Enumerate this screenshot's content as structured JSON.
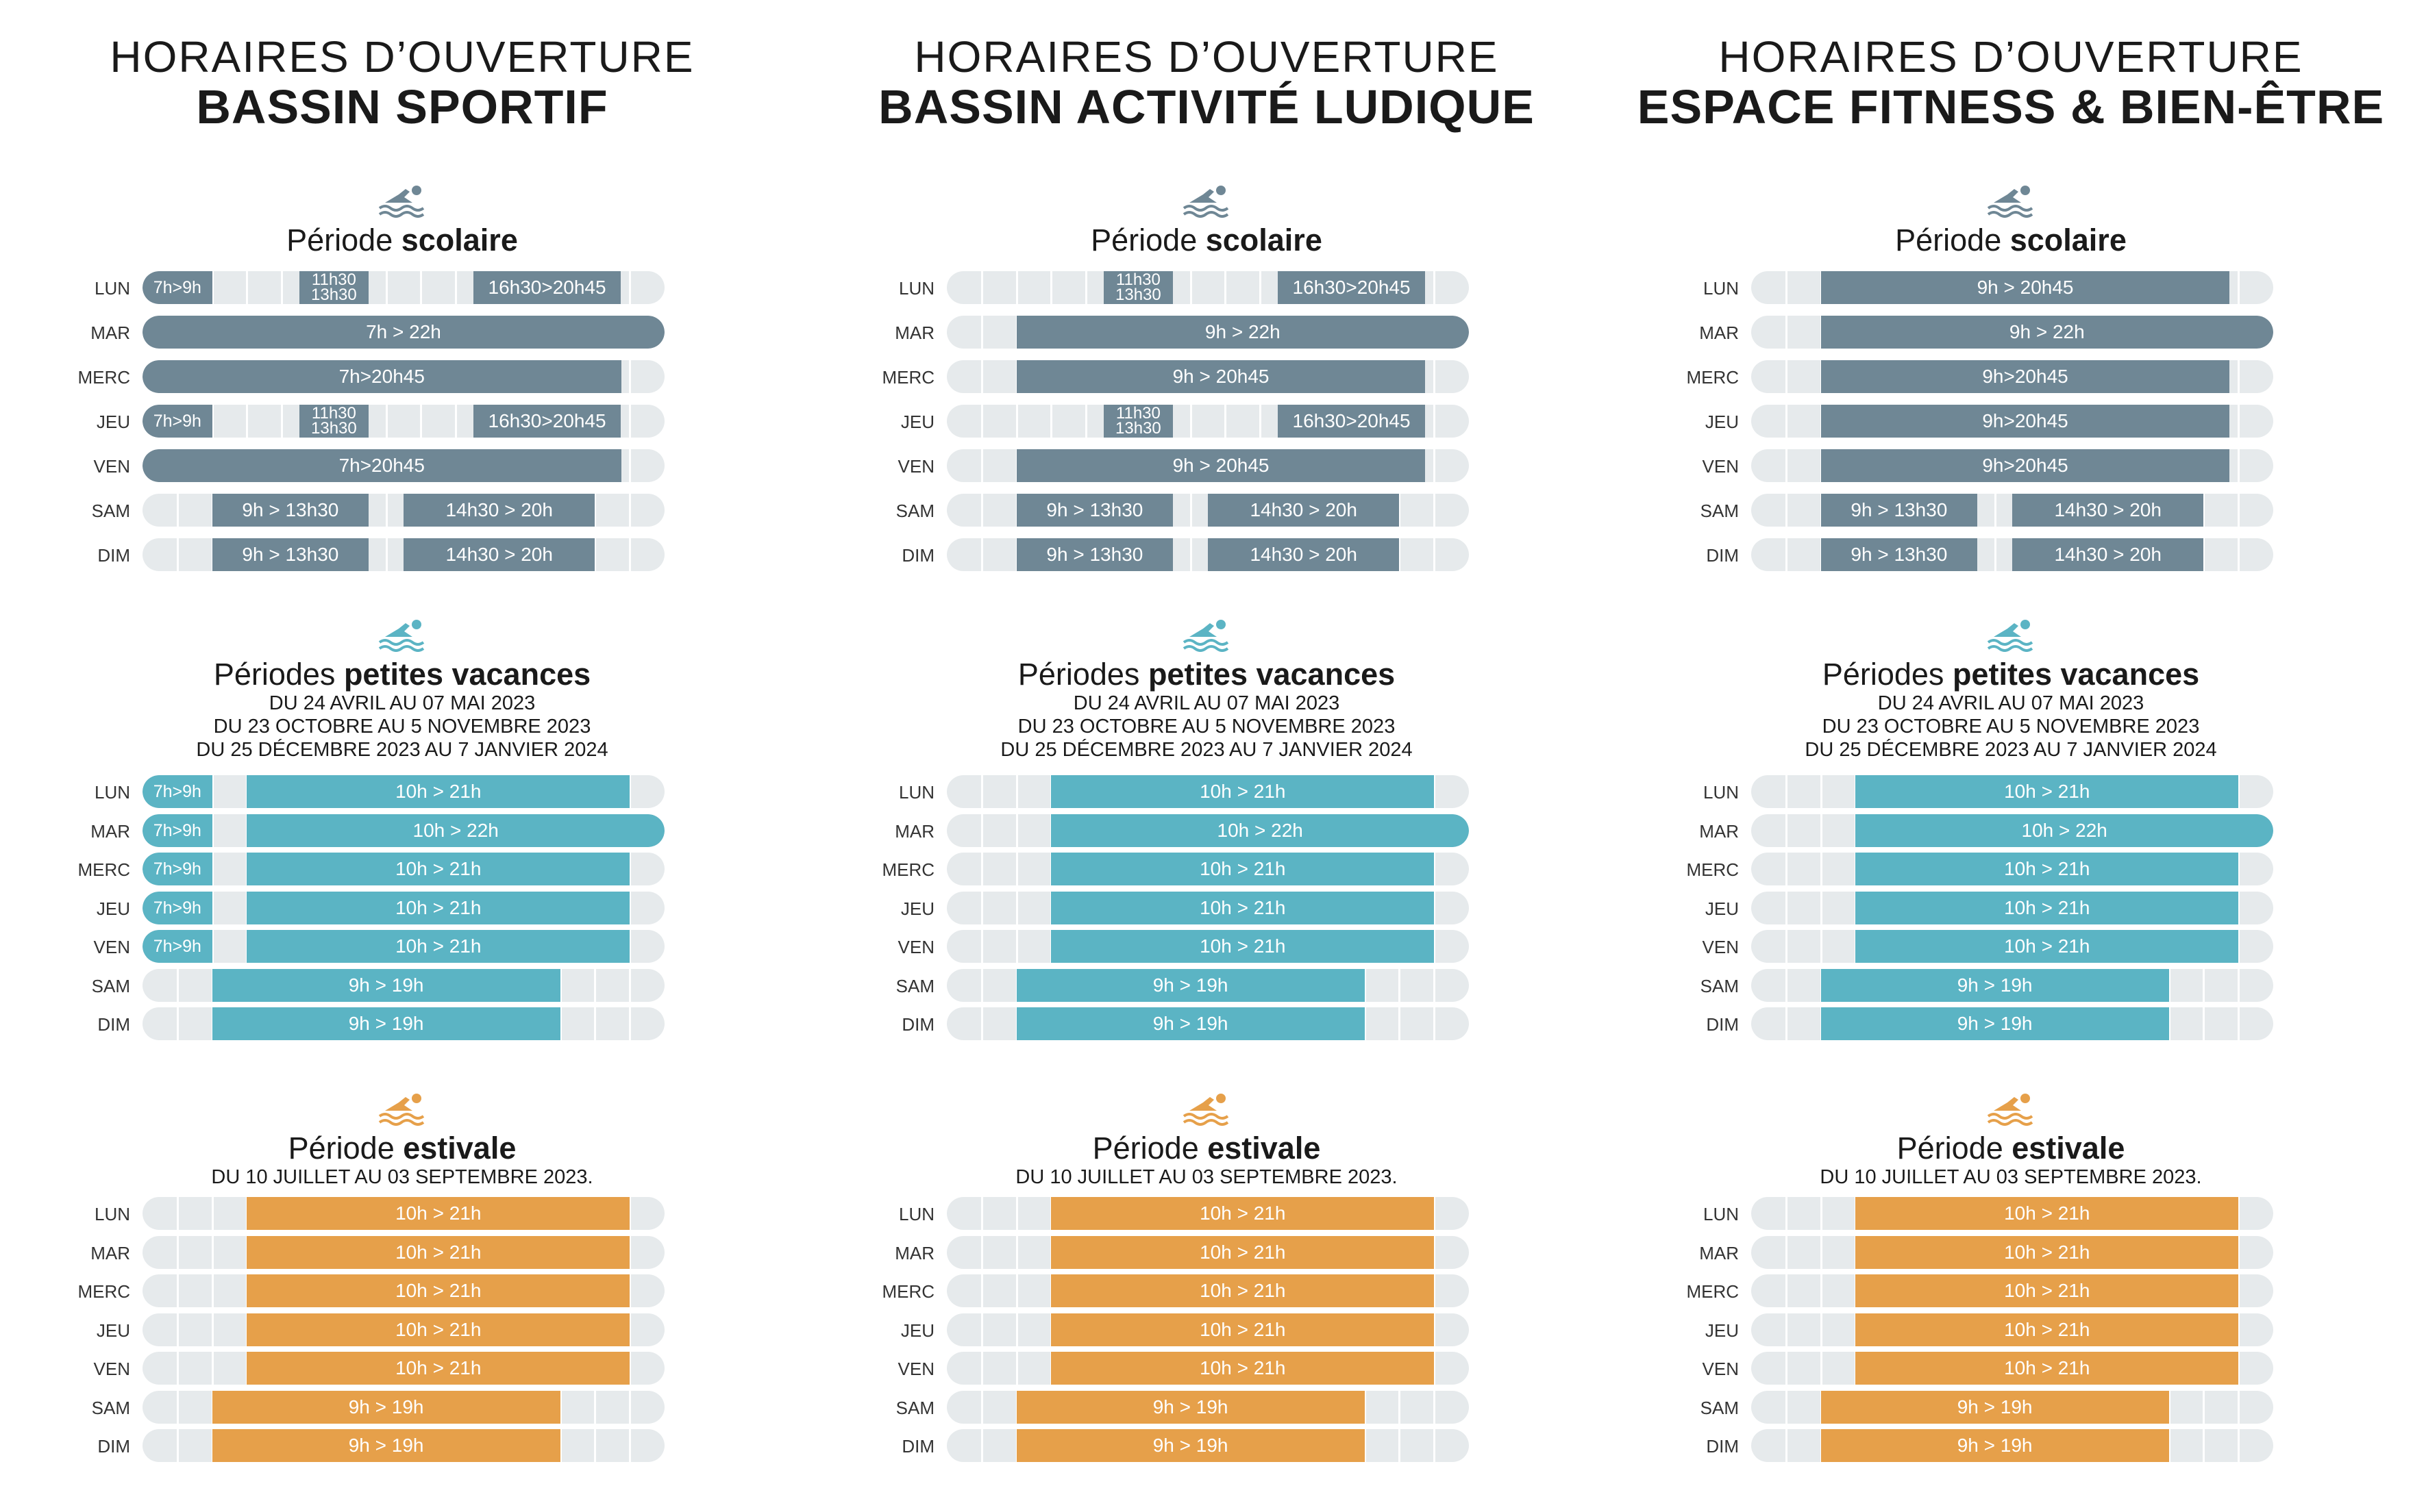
{
  "colors": {
    "scolaire": "#6f8795",
    "vacances": "#5bb4c4",
    "estivale": "#e6a04a",
    "track": "#e6eaec"
  },
  "section_labels": {
    "scolaire": {
      "pre": "Période ",
      "bold": "scolaire"
    },
    "vacances": {
      "pre": "Périodes ",
      "bold": "petites vacances"
    },
    "estivale": {
      "pre": "Période ",
      "bold": "estivale"
    }
  },
  "vacances_dates": [
    "DU 24 AVRIL AU 07 MAI 2023",
    "DU 23 OCTOBRE AU 5 NOVEMBRE 2023",
    "DU 25 DÉCEMBRE 2023 AU 7 JANVIER 2024"
  ],
  "estivale_dates": [
    "DU 10 JUILLET AU 03 SEPTEMBRE 2023."
  ],
  "columns": [
    {
      "title_line1": "HORAIRES D’OUVERTURE",
      "title_line2": "BASSIN SPORTIF",
      "scolaire": [
        {
          "day": "LUN",
          "slots": [
            {
              "s": 7,
              "e": 9,
              "label": "7h>9h"
            },
            {
              "s": 11.5,
              "e": 13.5,
              "label": "11h30\n13h30"
            },
            {
              "s": 16.5,
              "e": 20.75,
              "label": "16h30>20h45"
            }
          ]
        },
        {
          "day": "MAR",
          "slots": [
            {
              "s": 7,
              "e": 22,
              "label": "7h > 22h"
            }
          ]
        },
        {
          "day": "MERC",
          "slots": [
            {
              "s": 7,
              "e": 20.75,
              "label": "7h>20h45"
            }
          ]
        },
        {
          "day": "JEU",
          "slots": [
            {
              "s": 7,
              "e": 9,
              "label": "7h>9h"
            },
            {
              "s": 11.5,
              "e": 13.5,
              "label": "11h30\n13h30"
            },
            {
              "s": 16.5,
              "e": 20.75,
              "label": "16h30>20h45"
            }
          ]
        },
        {
          "day": "VEN",
          "slots": [
            {
              "s": 7,
              "e": 20.75,
              "label": "7h>20h45"
            }
          ]
        },
        {
          "day": "SAM",
          "slots": [
            {
              "s": 9,
              "e": 13.5,
              "label": "9h > 13h30"
            },
            {
              "s": 14.5,
              "e": 20,
              "label": "14h30 > 20h"
            }
          ]
        },
        {
          "day": "DIM",
          "slots": [
            {
              "s": 9,
              "e": 13.5,
              "label": "9h > 13h30"
            },
            {
              "s": 14.5,
              "e": 20,
              "label": "14h30 > 20h"
            }
          ]
        }
      ],
      "vacances": [
        {
          "day": "LUN",
          "slots": [
            {
              "s": 7,
              "e": 9,
              "label": "7h>9h"
            },
            {
              "s": 10,
              "e": 21,
              "label": "10h > 21h"
            }
          ]
        },
        {
          "day": "MAR",
          "slots": [
            {
              "s": 7,
              "e": 9,
              "label": "7h>9h"
            },
            {
              "s": 10,
              "e": 22,
              "label": "10h > 22h"
            }
          ]
        },
        {
          "day": "MERC",
          "slots": [
            {
              "s": 7,
              "e": 9,
              "label": "7h>9h"
            },
            {
              "s": 10,
              "e": 21,
              "label": "10h > 21h"
            }
          ]
        },
        {
          "day": "JEU",
          "slots": [
            {
              "s": 7,
              "e": 9,
              "label": "7h>9h"
            },
            {
              "s": 10,
              "e": 21,
              "label": "10h > 21h"
            }
          ]
        },
        {
          "day": "VEN",
          "slots": [
            {
              "s": 7,
              "e": 9,
              "label": "7h>9h"
            },
            {
              "s": 10,
              "e": 21,
              "label": "10h > 21h"
            }
          ]
        },
        {
          "day": "SAM",
          "slots": [
            {
              "s": 9,
              "e": 19,
              "label": "9h > 19h"
            }
          ]
        },
        {
          "day": "DIM",
          "slots": [
            {
              "s": 9,
              "e": 19,
              "label": "9h > 19h"
            }
          ]
        }
      ],
      "estivale": [
        {
          "day": "LUN",
          "slots": [
            {
              "s": 10,
              "e": 21,
              "label": "10h > 21h"
            }
          ]
        },
        {
          "day": "MAR",
          "slots": [
            {
              "s": 10,
              "e": 21,
              "label": "10h > 21h"
            }
          ]
        },
        {
          "day": "MERC",
          "slots": [
            {
              "s": 10,
              "e": 21,
              "label": "10h > 21h"
            }
          ]
        },
        {
          "day": "JEU",
          "slots": [
            {
              "s": 10,
              "e": 21,
              "label": "10h > 21h"
            }
          ]
        },
        {
          "day": "VEN",
          "slots": [
            {
              "s": 10,
              "e": 21,
              "label": "10h > 21h"
            }
          ]
        },
        {
          "day": "SAM",
          "slots": [
            {
              "s": 9,
              "e": 19,
              "label": "9h > 19h"
            }
          ]
        },
        {
          "day": "DIM",
          "slots": [
            {
              "s": 9,
              "e": 19,
              "label": "9h > 19h"
            }
          ]
        }
      ]
    },
    {
      "title_line1": "HORAIRES D’OUVERTURE",
      "title_line2": "BASSIN ACTIVITÉ LUDIQUE",
      "scolaire": [
        {
          "day": "LUN",
          "slots": [
            {
              "s": 11.5,
              "e": 13.5,
              "label": "11h30\n13h30"
            },
            {
              "s": 16.5,
              "e": 20.75,
              "label": "16h30>20h45"
            }
          ]
        },
        {
          "day": "MAR",
          "slots": [
            {
              "s": 9,
              "e": 22,
              "label": "9h > 22h"
            }
          ]
        },
        {
          "day": "MERC",
          "slots": [
            {
              "s": 9,
              "e": 20.75,
              "label": "9h > 20h45"
            }
          ]
        },
        {
          "day": "JEU",
          "slots": [
            {
              "s": 11.5,
              "e": 13.5,
              "label": "11h30\n13h30"
            },
            {
              "s": 16.5,
              "e": 20.75,
              "label": "16h30>20h45"
            }
          ]
        },
        {
          "day": "VEN",
          "slots": [
            {
              "s": 9,
              "e": 20.75,
              "label": "9h > 20h45"
            }
          ]
        },
        {
          "day": "SAM",
          "slots": [
            {
              "s": 9,
              "e": 13.5,
              "label": "9h > 13h30"
            },
            {
              "s": 14.5,
              "e": 20,
              "label": "14h30 > 20h"
            }
          ]
        },
        {
          "day": "DIM",
          "slots": [
            {
              "s": 9,
              "e": 13.5,
              "label": "9h > 13h30"
            },
            {
              "s": 14.5,
              "e": 20,
              "label": "14h30 > 20h"
            }
          ]
        }
      ],
      "vacances": [
        {
          "day": "LUN",
          "slots": [
            {
              "s": 10,
              "e": 21,
              "label": "10h > 21h"
            }
          ]
        },
        {
          "day": "MAR",
          "slots": [
            {
              "s": 10,
              "e": 22,
              "label": "10h > 22h"
            }
          ]
        },
        {
          "day": "MERC",
          "slots": [
            {
              "s": 10,
              "e": 21,
              "label": "10h > 21h"
            }
          ]
        },
        {
          "day": "JEU",
          "slots": [
            {
              "s": 10,
              "e": 21,
              "label": "10h > 21h"
            }
          ]
        },
        {
          "day": "VEN",
          "slots": [
            {
              "s": 10,
              "e": 21,
              "label": "10h > 21h"
            }
          ]
        },
        {
          "day": "SAM",
          "slots": [
            {
              "s": 9,
              "e": 19,
              "label": "9h > 19h"
            }
          ]
        },
        {
          "day": "DIM",
          "slots": [
            {
              "s": 9,
              "e": 19,
              "label": "9h > 19h"
            }
          ]
        }
      ],
      "estivale": [
        {
          "day": "LUN",
          "slots": [
            {
              "s": 10,
              "e": 21,
              "label": "10h > 21h"
            }
          ]
        },
        {
          "day": "MAR",
          "slots": [
            {
              "s": 10,
              "e": 21,
              "label": "10h > 21h"
            }
          ]
        },
        {
          "day": "MERC",
          "slots": [
            {
              "s": 10,
              "e": 21,
              "label": "10h > 21h"
            }
          ]
        },
        {
          "day": "JEU",
          "slots": [
            {
              "s": 10,
              "e": 21,
              "label": "10h > 21h"
            }
          ]
        },
        {
          "day": "VEN",
          "slots": [
            {
              "s": 10,
              "e": 21,
              "label": "10h > 21h"
            }
          ]
        },
        {
          "day": "SAM",
          "slots": [
            {
              "s": 9,
              "e": 19,
              "label": "9h > 19h"
            }
          ]
        },
        {
          "day": "DIM",
          "slots": [
            {
              "s": 9,
              "e": 19,
              "label": "9h > 19h"
            }
          ]
        }
      ]
    },
    {
      "title_line1": "HORAIRES D’OUVERTURE",
      "title_line2": "ESPACE FITNESS & BIEN-ÊTRE",
      "scolaire": [
        {
          "day": "LUN",
          "slots": [
            {
              "s": 9,
              "e": 20.75,
              "label": "9h > 20h45"
            }
          ]
        },
        {
          "day": "MAR",
          "slots": [
            {
              "s": 9,
              "e": 22,
              "label": "9h > 22h"
            }
          ]
        },
        {
          "day": "MERC",
          "slots": [
            {
              "s": 9,
              "e": 20.75,
              "label": "9h>20h45"
            }
          ]
        },
        {
          "day": "JEU",
          "slots": [
            {
              "s": 9,
              "e": 20.75,
              "label": "9h>20h45"
            }
          ]
        },
        {
          "day": "VEN",
          "slots": [
            {
              "s": 9,
              "e": 20.75,
              "label": "9h>20h45"
            }
          ]
        },
        {
          "day": "SAM",
          "slots": [
            {
              "s": 9,
              "e": 13.5,
              "label": "9h > 13h30"
            },
            {
              "s": 14.5,
              "e": 20,
              "label": "14h30 > 20h"
            }
          ]
        },
        {
          "day": "DIM",
          "slots": [
            {
              "s": 9,
              "e": 13.5,
              "label": "9h > 13h30"
            },
            {
              "s": 14.5,
              "e": 20,
              "label": "14h30 > 20h"
            }
          ]
        }
      ],
      "vacances": [
        {
          "day": "LUN",
          "slots": [
            {
              "s": 10,
              "e": 21,
              "label": "10h > 21h"
            }
          ]
        },
        {
          "day": "MAR",
          "slots": [
            {
              "s": 10,
              "e": 22,
              "label": "10h > 22h"
            }
          ]
        },
        {
          "day": "MERC",
          "slots": [
            {
              "s": 10,
              "e": 21,
              "label": "10h > 21h"
            }
          ]
        },
        {
          "day": "JEU",
          "slots": [
            {
              "s": 10,
              "e": 21,
              "label": "10h > 21h"
            }
          ]
        },
        {
          "day": "VEN",
          "slots": [
            {
              "s": 10,
              "e": 21,
              "label": "10h > 21h"
            }
          ]
        },
        {
          "day": "SAM",
          "slots": [
            {
              "s": 9,
              "e": 19,
              "label": "9h > 19h"
            }
          ]
        },
        {
          "day": "DIM",
          "slots": [
            {
              "s": 9,
              "e": 19,
              "label": "9h > 19h"
            }
          ]
        }
      ],
      "estivale": [
        {
          "day": "LUN",
          "slots": [
            {
              "s": 10,
              "e": 21,
              "label": "10h > 21h"
            }
          ]
        },
        {
          "day": "MAR",
          "slots": [
            {
              "s": 10,
              "e": 21,
              "label": "10h > 21h"
            }
          ]
        },
        {
          "day": "MERC",
          "slots": [
            {
              "s": 10,
              "e": 21,
              "label": "10h > 21h"
            }
          ]
        },
        {
          "day": "JEU",
          "slots": [
            {
              "s": 10,
              "e": 21,
              "label": "10h > 21h"
            }
          ]
        },
        {
          "day": "VEN",
          "slots": [
            {
              "s": 10,
              "e": 21,
              "label": "10h > 21h"
            }
          ]
        },
        {
          "day": "SAM",
          "slots": [
            {
              "s": 9,
              "e": 19,
              "label": "9h > 19h"
            }
          ]
        },
        {
          "day": "DIM",
          "slots": [
            {
              "s": 9,
              "e": 19,
              "label": "9h > 19h"
            }
          ]
        }
      ]
    }
  ]
}
